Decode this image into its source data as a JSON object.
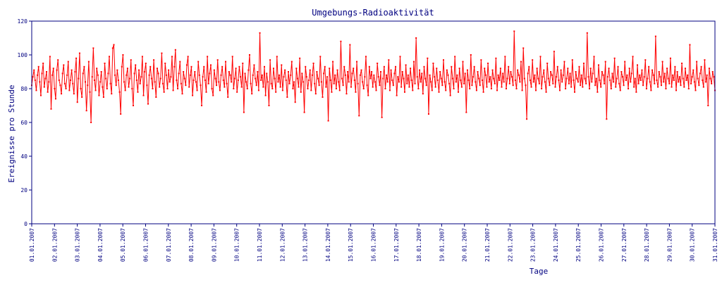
{
  "chart_data": {
    "type": "line",
    "title": "Umgebungs-Radioaktivität",
    "xlabel": "Tage",
    "ylabel": "Ereignisse pro Stunde",
    "ylim": [
      0,
      120
    ],
    "yticks": [
      "0",
      "20",
      "40",
      "60",
      "80",
      "100",
      "120"
    ],
    "xticks": [
      "01.01.2007",
      "02.01.2007",
      "03.01.2007",
      "04.01.2007",
      "05.01.2007",
      "06.01.2007",
      "07.01.2007",
      "08.01.2007",
      "09.01.2007",
      "10.01.2007",
      "11.01.2007",
      "12.01.2007",
      "13.01.2007",
      "14.01.2007",
      "15.01.2007",
      "16.01.2007",
      "17.01.2007",
      "18.01.2007",
      "19.01.2007",
      "20.01.2007",
      "21.01.2007",
      "22.01.2007",
      "23.01.2007",
      "24.01.2007",
      "25.01.2007",
      "26.01.2007",
      "27.01.2007",
      "28.01.2007",
      "29.01.2007",
      "30.01.2007",
      "31.01.2007"
    ],
    "grid": false,
    "colors": {
      "line": "#ff0000",
      "axis": "#000080",
      "text": "#000080"
    },
    "series": [
      {
        "x_unit": "day",
        "values": [
          82,
          87,
          91,
          85,
          79,
          88,
          93,
          84,
          76,
          89,
          95,
          81,
          86,
          90,
          78,
          84,
          99,
          68,
          88,
          92,
          80,
          74,
          91,
          97,
          85,
          82,
          77,
          89,
          94,
          83,
          80,
          88,
          96,
          79,
          85,
          91,
          83,
          77,
          90,
          98,
          72,
          86,
          101,
          80,
          75,
          89,
          93,
          84,
          67,
          82,
          96,
          78,
          60,
          87,
          104,
          85,
          79,
          92,
          88,
          76,
          84,
          90,
          81,
          75,
          95,
          86,
          80,
          89,
          99,
          83,
          77,
          104,
          106,
          88,
          82,
          91,
          85,
          78,
          65,
          93,
          100,
          84,
          79,
          88,
          92,
          81,
          86,
          97,
          80,
          70,
          89,
          94,
          85,
          78,
          91,
          83,
          87,
          99,
          76,
          90,
          95,
          82,
          71,
          88,
          93,
          86,
          80,
          97,
          84,
          75,
          92,
          89,
          81,
          86,
          101,
          83,
          78,
          95,
          88,
          80,
          91,
          84,
          87,
          99,
          79,
          93,
          103,
          85,
          80,
          89,
          96,
          83,
          77,
          90,
          86,
          82,
          94,
          99,
          81,
          88,
          93,
          76,
          85,
          90,
          84,
          79,
          96,
          88,
          82,
          70,
          87,
          93,
          85,
          78,
          99,
          83,
          89,
          94,
          80,
          76,
          91,
          86,
          82,
          97,
          84,
          79,
          88,
          93,
          85,
          81,
          96,
          83,
          75,
          90,
          88,
          84,
          99,
          80,
          86,
          92,
          78,
          85,
          93,
          87,
          81,
          95,
          66,
          89,
          84,
          80,
          91,
          100,
          83,
          77,
          88,
          94,
          86,
          82,
          90,
          79,
          113,
          85,
          88,
          81,
          93,
          76,
          89,
          84,
          70,
          97,
          83,
          80,
          92,
          86,
          78,
          99,
          84,
          88,
          81,
          94,
          79,
          87,
          91,
          85,
          75,
          90,
          83,
          88,
          96,
          80,
          84,
          72,
          92,
          86,
          81,
          98,
          78,
          89,
          84,
          66,
          93,
          87,
          80,
          85,
          91,
          79,
          88,
          95,
          83,
          77,
          90,
          86,
          82,
          99,
          84,
          75,
          89,
          93,
          81,
          87,
          61,
          92,
          85,
          78,
          96,
          83,
          88,
          80,
          91,
          84,
          79,
          108,
          86,
          82,
          93,
          88,
          77,
          90,
          84,
          106,
          81,
          89,
          92,
          85,
          78,
          96,
          83,
          64,
          88,
          91,
          84,
          80,
          87,
          99,
          82,
          76,
          93,
          86,
          90,
          81,
          88,
          84,
          79,
          95,
          87,
          82,
          90,
          63,
          86,
          93,
          80,
          88,
          84,
          97,
          79,
          91,
          85,
          82,
          89,
          93,
          76,
          87,
          84,
          99,
          81,
          90,
          86,
          78,
          94,
          83,
          88,
          81,
          92,
          85,
          79,
          96,
          83,
          110,
          87,
          80,
          91,
          84,
          89,
          77,
          93,
          86,
          82,
          98,
          65,
          88,
          84,
          79,
          95,
          87,
          81,
          92,
          85,
          78,
          90,
          86,
          82,
          97,
          84,
          79,
          91,
          88,
          83,
          76,
          93,
          86,
          80,
          99,
          84,
          88,
          78,
          92,
          85,
          81,
          96,
          83,
          89,
          66,
          91,
          85,
          80,
          100,
          82,
          87,
          93,
          84,
          79,
          90,
          86,
          82,
          97,
          85,
          78,
          92,
          88,
          81,
          95,
          84,
          87,
          80,
          91,
          86,
          83,
          98,
          79,
          88,
          85,
          92,
          81,
          89,
          84,
          99,
          80,
          86,
          93,
          83,
          90,
          87,
          82,
          114,
          85,
          80,
          91,
          88,
          84,
          96,
          79,
          104,
          86,
          82,
          62,
          89,
          93,
          85,
          81,
          97,
          84,
          88,
          79,
          92,
          86,
          83,
          99,
          80,
          87,
          91,
          84,
          78,
          95,
          86,
          82,
          90,
          88,
          83,
          102,
          81,
          87,
          93,
          85,
          79,
          91,
          84,
          88,
          96,
          80,
          86,
          92,
          83,
          89,
          81,
          97,
          85,
          78,
          90,
          86,
          84,
          93,
          82,
          88,
          81,
          95,
          86,
          83,
          113,
          87,
          80,
          92,
          84,
          89,
          99,
          82,
          86,
          78,
          94,
          85,
          81,
          90,
          88,
          83,
          96,
          62,
          87,
          92,
          85,
          80,
          89,
          84,
          98,
          81,
          86,
          93,
          83,
          79,
          90,
          87,
          82,
          96,
          85,
          88,
          80,
          92,
          84,
          89,
          99,
          81,
          86,
          78,
          94,
          83,
          88,
          85,
          91,
          82,
          87,
          97,
          80,
          86,
          93,
          84,
          79,
          91,
          88,
          83,
          111,
          85,
          81,
          90,
          87,
          82,
          96,
          84,
          89,
          80,
          92,
          86,
          83,
          98,
          81,
          88,
          85,
          93,
          79,
          90,
          84,
          87,
          82,
          95,
          86,
          81,
          92,
          85,
          88,
          80,
          106,
          83,
          87,
          91,
          84,
          79,
          96,
          86,
          82,
          89,
          93,
          85,
          81,
          97,
          84,
          88,
          70,
          92,
          86,
          83,
          90,
          87,
          79
        ]
      }
    ]
  }
}
